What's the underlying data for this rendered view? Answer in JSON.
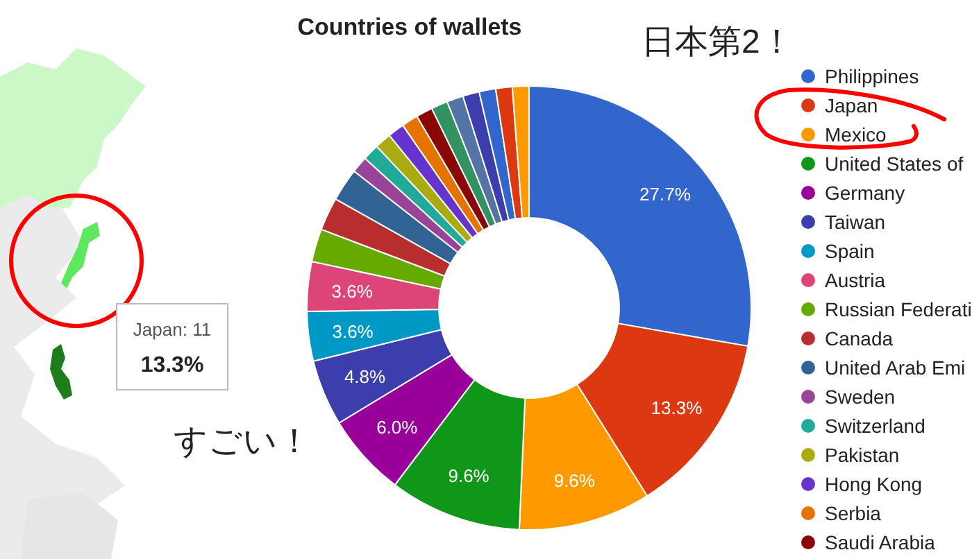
{
  "chart_data": {
    "type": "donut",
    "title": "Countries of wallets",
    "categories": [
      "Philippines",
      "Japan",
      "Mexico",
      "United States of",
      "Germany",
      "Taiwan",
      "Spain",
      "Austria",
      "Russian Federati",
      "Canada",
      "United Arab Emi",
      "Sweden",
      "Switzerland",
      "Pakistan",
      "Hong Kong",
      "Serbia",
      "Saudi Arabia",
      null,
      null,
      null,
      null,
      null,
      null
    ],
    "values": [
      27.7,
      13.3,
      9.6,
      9.6,
      6.0,
      4.8,
      3.6,
      3.6,
      2.4,
      2.4,
      2.4,
      1.2,
      1.2,
      1.2,
      1.2,
      1.2,
      1.2,
      1.2,
      1.2,
      1.2,
      1.2,
      1.2,
      1.2
    ],
    "colors": [
      "#3366cc",
      "#dc3912",
      "#ff9900",
      "#109618",
      "#990099",
      "#3b3eac",
      "#0099c6",
      "#dd4477",
      "#66aa00",
      "#b82e2e",
      "#316395",
      "#994499",
      "#22aa99",
      "#aaaa11",
      "#6633cc",
      "#e67300",
      "#8b0707",
      "#329262",
      "#5574a6",
      "#3b3eac",
      "#3366cc",
      "#dc3912",
      "#ff9900"
    ],
    "value_labels": [
      "27.7%",
      "13.3%",
      "9.6%",
      "9.6%",
      "6.0%",
      "4.8%",
      "3.6%",
      "3.6%",
      null,
      null,
      null,
      null,
      null,
      null,
      null,
      null,
      null,
      null,
      null,
      null,
      null,
      null,
      null
    ],
    "legend": "right",
    "annotations": [
      "日本第2！",
      "すごい！",
      "Japan: 11",
      "13.3%"
    ]
  }
}
